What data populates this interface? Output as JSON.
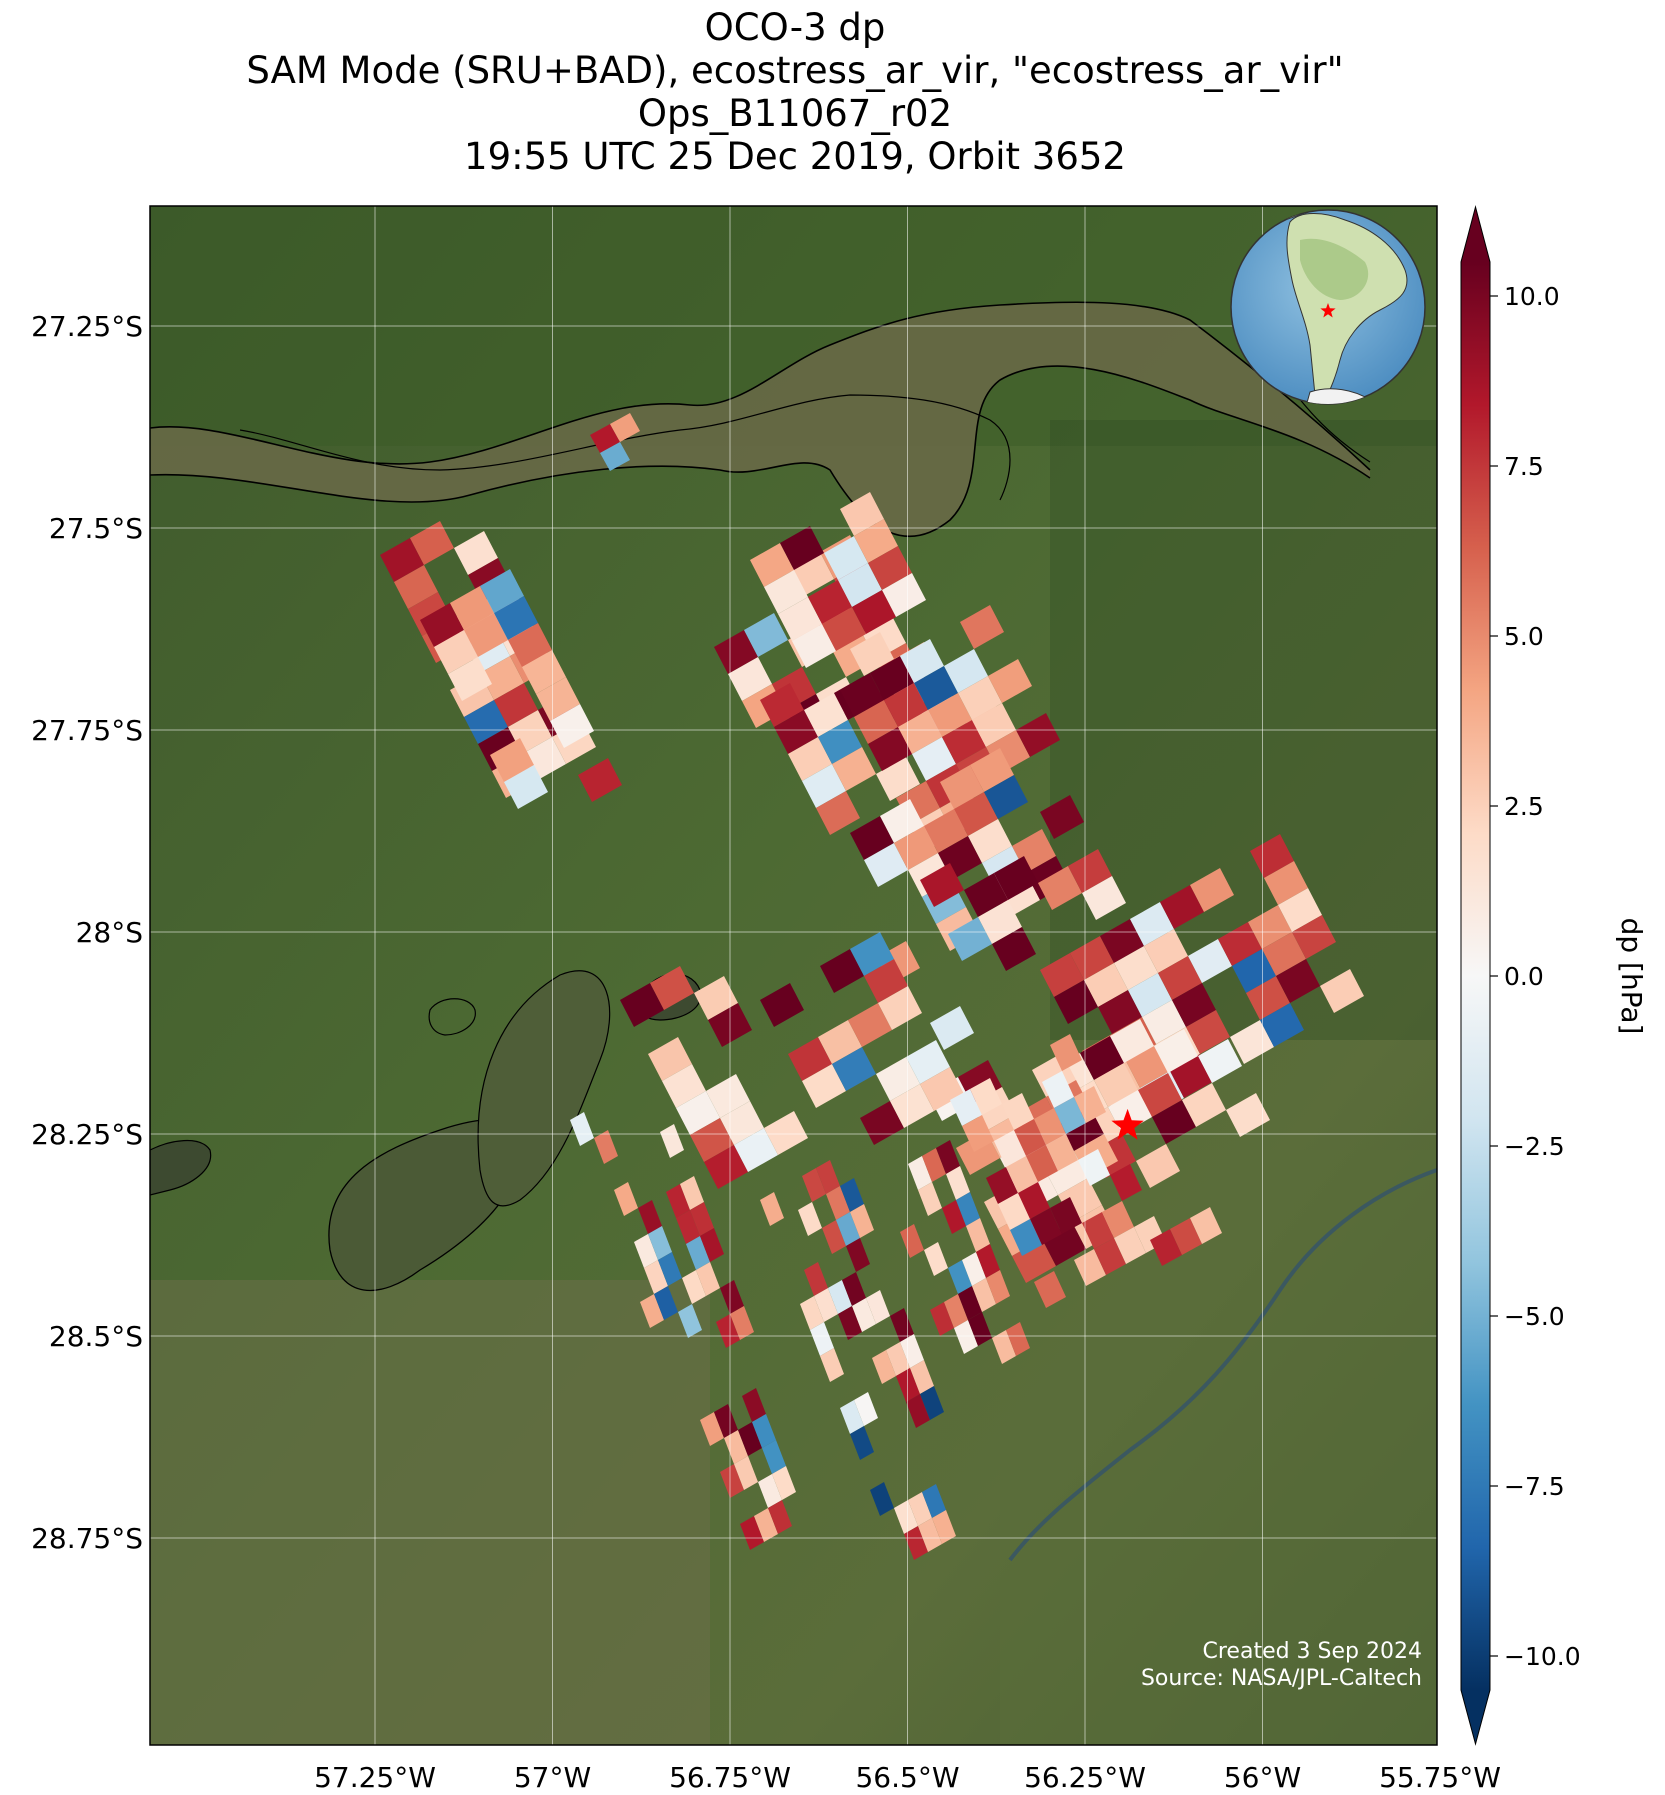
{
  "title": {
    "line1": "OCO-3 dp",
    "line2": "SAM Mode (SRU+BAD), ecostress_ar_vir, \"ecostress_ar_vir\"",
    "line3": "Ops_B11067_r02",
    "line4": "19:55 UTC 25 Dec 2019, Orbit 3652"
  },
  "map": {
    "lon_ticks": [
      "57.25°W",
      "57°W",
      "56.75°W",
      "56.5°W",
      "56.25°W",
      "56°W",
      "55.75°W"
    ],
    "lat_ticks": [
      "27.25°S",
      "27.5°S",
      "27.75°S",
      "28°S",
      "28.25°S",
      "28.5°S",
      "28.75°S"
    ],
    "target_marker": {
      "lon": -56.19,
      "lat": -28.24,
      "color": "#ff0000"
    },
    "overview_globe": {
      "region": "South America",
      "marker_color": "#ff0000"
    }
  },
  "colorbar": {
    "label": "dp [hPa]",
    "ticks": [
      "10.0",
      "7.5",
      "5.0",
      "2.5",
      "0.0",
      "−2.5",
      "−5.0",
      "−7.5",
      "−10.0"
    ],
    "range": [
      -10.5,
      10.5
    ],
    "colors": [
      "#053061",
      "#2166ac",
      "#4393c3",
      "#92c5de",
      "#d1e5f0",
      "#f7f7f7",
      "#fddbc7",
      "#f4a582",
      "#d6604d",
      "#b2182b",
      "#67001f"
    ]
  },
  "credits": {
    "created": "Created 3 Sep 2024",
    "source": "Source: NASA/JPL-Caltech"
  }
}
